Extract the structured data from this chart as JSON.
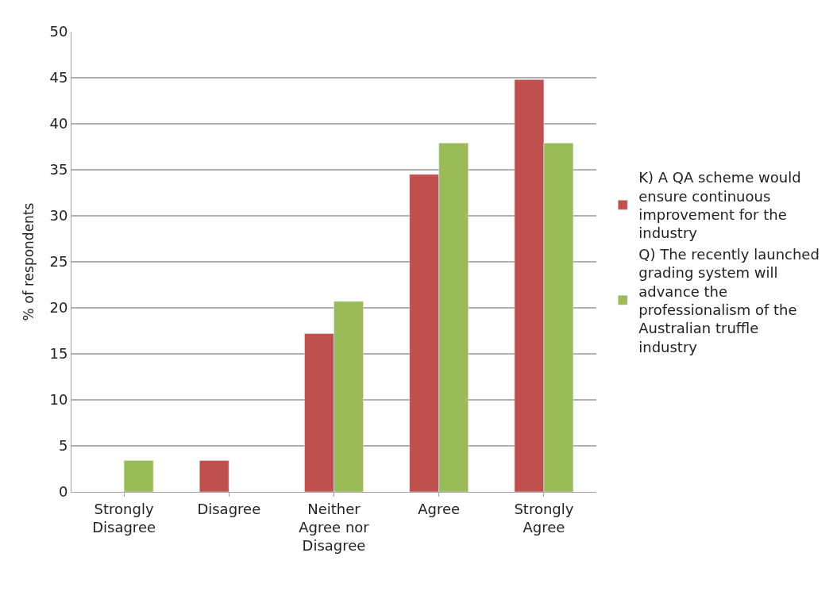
{
  "chart_data": {
    "type": "bar",
    "ylabel": "% of respondents",
    "categories": [
      "Strongly Disagree",
      "Disagree",
      "Neither Agree nor Disagree",
      "Agree",
      "Strongly Agree"
    ],
    "series": [
      {
        "name": "K) A QA scheme would ensure continuous improvement for the industry",
        "color": "#c0504d",
        "values": [
          null,
          3.4,
          17.2,
          34.5,
          44.8
        ]
      },
      {
        "name": "Q) The recently launched grading system will advance the professionalism of the Australian truffle industry",
        "color": "#9bbb59",
        "values": [
          3.4,
          null,
          20.7,
          37.9,
          37.9
        ]
      }
    ],
    "ylim": [
      0,
      50
    ],
    "yticks": [
      0,
      5,
      10,
      15,
      20,
      25,
      30,
      35,
      40,
      45,
      50
    ],
    "grid": "y",
    "legend": "right"
  }
}
